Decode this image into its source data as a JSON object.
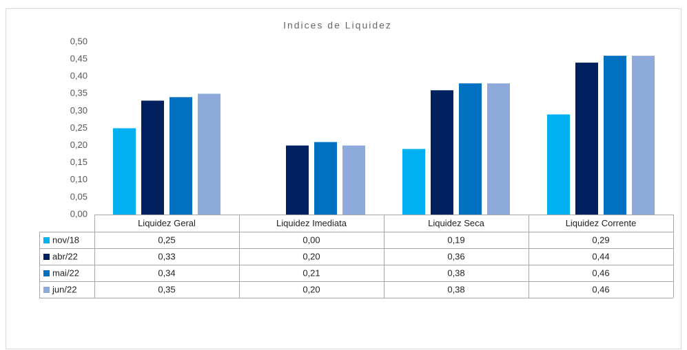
{
  "chart_data": {
    "type": "bar",
    "title": "Indices de Liquidez",
    "categories": [
      "Liquidez Geral",
      "Liquidez Imediata",
      "Liquidez Seca",
      "Liquidez Corrente"
    ],
    "series": [
      {
        "name": "nov/18",
        "color": "#00b0f0",
        "values": [
          0.25,
          0,
          0.19,
          0.29
        ],
        "value_labels": [
          "0,25",
          "0,00",
          "0,19",
          "0,29"
        ]
      },
      {
        "name": "abr/22",
        "color": "#002060",
        "values": [
          0.33,
          0.2,
          0.36,
          0.44
        ],
        "value_labels": [
          "0,33",
          "0,20",
          "0,36",
          "0,44"
        ]
      },
      {
        "name": "mai/22",
        "color": "#0070c0",
        "values": [
          0.34,
          0.21,
          0.38,
          0.46
        ],
        "value_labels": [
          "0,34",
          "0,21",
          "0,38",
          "0,46"
        ]
      },
      {
        "name": "jun/22",
        "color": "#8eaadb",
        "values": [
          0.35,
          0.2,
          0.38,
          0.46
        ],
        "value_labels": [
          "0,35",
          "0,20",
          "0,38",
          "0,46"
        ]
      }
    ],
    "ylim": [
      0,
      0.5
    ],
    "yticks": [
      {
        "value": 0,
        "label": "0,00"
      },
      {
        "value": 0.05,
        "label": "0,05"
      },
      {
        "value": 0.1,
        "label": "0,10"
      },
      {
        "value": 0.15,
        "label": "0,15"
      },
      {
        "value": 0.2,
        "label": "0,20"
      },
      {
        "value": 0.25,
        "label": "0,25"
      },
      {
        "value": 0.3,
        "label": "0,30"
      },
      {
        "value": 0.35,
        "label": "0,35"
      },
      {
        "value": 0.4,
        "label": "0,40"
      },
      {
        "value": 0.45,
        "label": "0,45"
      },
      {
        "value": 0.5,
        "label": "0,50"
      }
    ],
    "grid": false
  }
}
